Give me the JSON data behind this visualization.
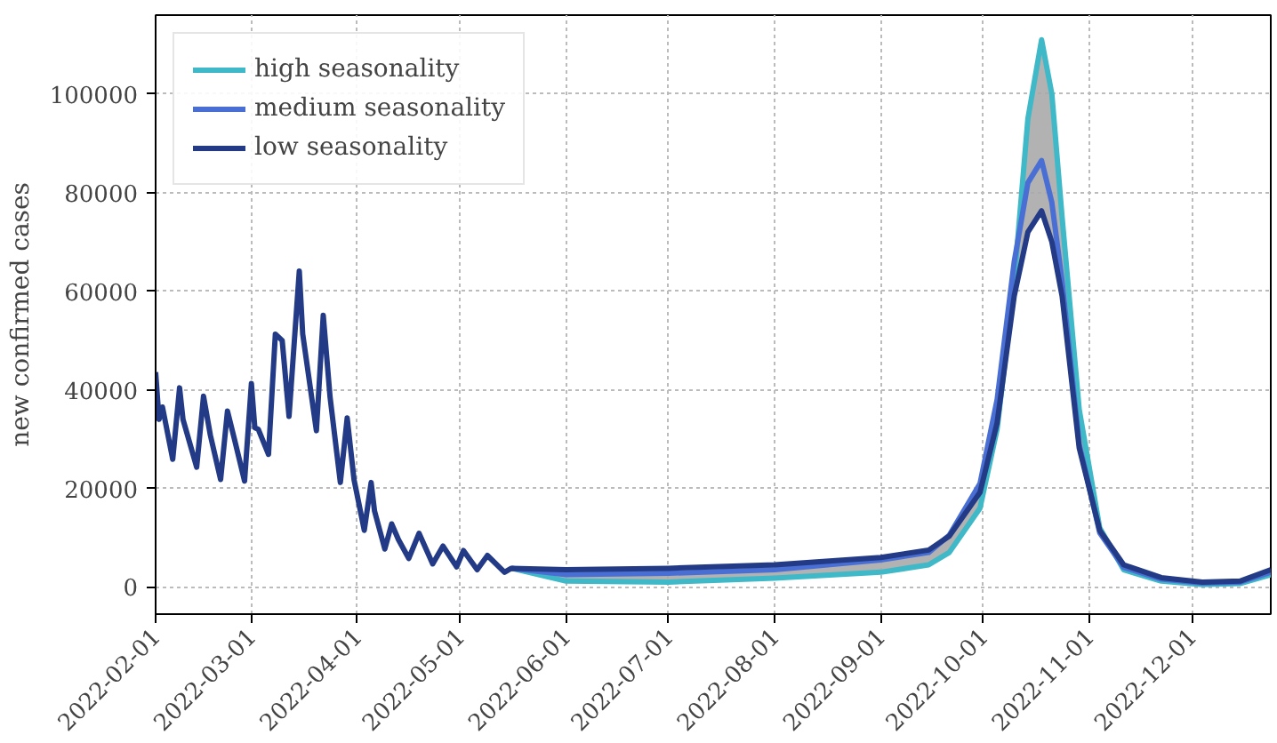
{
  "chart_data": {
    "type": "line",
    "ylabel": "new confirmed cases",
    "xlim": [
      "2022-02-01",
      "2022-12-24"
    ],
    "xticks": [
      "2022-02-01",
      "2022-03-01",
      "2022-04-01",
      "2022-05-01",
      "2022-06-01",
      "2022-07-01",
      "2022-08-01",
      "2022-09-01",
      "2022-10-01",
      "2022-11-01",
      "2022-12-01"
    ],
    "ylim": [
      -5500,
      116000
    ],
    "yticks": [
      0,
      20000,
      40000,
      60000,
      80000,
      100000
    ],
    "grid": true,
    "legend": "top left",
    "line_style": "solid",
    "series": [
      {
        "name": "high seasonality",
        "color": "#3fb8c8",
        "x": [
          "2022-05-16",
          "2022-06-01",
          "2022-07-01",
          "2022-08-01",
          "2022-09-01",
          "2022-09-15",
          "2022-09-21",
          "2022-09-30",
          "2022-10-05",
          "2022-10-10",
          "2022-10-14",
          "2022-10-18",
          "2022-10-21",
          "2022-10-24",
          "2022-10-29",
          "2022-11-04",
          "2022-11-11",
          "2022-11-22",
          "2022-12-04",
          "2022-12-15",
          "2022-12-24"
        ],
        "values": [
          3800,
          1200,
          1000,
          1800,
          3000,
          4500,
          7000,
          16000,
          32000,
          62000,
          95000,
          111000,
          100000,
          75000,
          36000,
          12000,
          3500,
          1200,
          500,
          700,
          2500
        ]
      },
      {
        "name": "medium seasonality",
        "color": "#4a6fd4",
        "x": [
          "2022-05-16",
          "2022-06-01",
          "2022-07-01",
          "2022-08-01",
          "2022-09-01",
          "2022-09-15",
          "2022-09-21",
          "2022-09-30",
          "2022-10-05",
          "2022-10-10",
          "2022-10-14",
          "2022-10-18",
          "2022-10-21",
          "2022-10-24",
          "2022-10-29",
          "2022-11-04",
          "2022-11-11",
          "2022-11-22",
          "2022-12-04",
          "2022-12-15",
          "2022-12-24"
        ],
        "values": [
          3800,
          2500,
          2800,
          3500,
          5500,
          7000,
          10500,
          21000,
          38000,
          66000,
          82000,
          86500,
          78000,
          62000,
          29000,
          11000,
          4000,
          1600,
          800,
          1000,
          3000
        ],
        "lower": [
          3800,
          1200,
          1000,
          1800,
          3000,
          4500,
          7000,
          16000,
          32000,
          59000,
          72000,
          76300,
          70000,
          59000,
          28200,
          11000,
          3500,
          1200,
          500,
          700,
          2500
        ],
        "upper": [
          3800,
          3500,
          3800,
          4500,
          6000,
          7500,
          10500,
          21000,
          38000,
          66000,
          95000,
          111000,
          100000,
          75000,
          36000,
          12000,
          4500,
          1900,
          1000,
          1200,
          3500
        ]
      },
      {
        "name": "low seasonality",
        "color": "#233b86",
        "x": [
          "2022-02-01",
          "2022-02-02",
          "2022-02-03",
          "2022-02-06",
          "2022-02-08",
          "2022-02-09",
          "2022-02-13",
          "2022-02-15",
          "2022-02-17",
          "2022-02-20",
          "2022-02-22",
          "2022-02-24",
          "2022-02-27",
          "2022-03-01",
          "2022-03-02",
          "2022-03-03",
          "2022-03-06",
          "2022-03-08",
          "2022-03-10",
          "2022-03-12",
          "2022-03-15",
          "2022-03-16",
          "2022-03-20",
          "2022-03-22",
          "2022-03-24",
          "2022-03-27",
          "2022-03-29",
          "2022-03-31",
          "2022-04-03",
          "2022-04-05",
          "2022-04-06",
          "2022-04-09",
          "2022-04-11",
          "2022-04-13",
          "2022-04-16",
          "2022-04-19",
          "2022-04-23",
          "2022-04-26",
          "2022-04-30",
          "2022-05-02",
          "2022-05-06",
          "2022-05-09",
          "2022-05-14",
          "2022-05-16",
          "2022-06-01",
          "2022-07-01",
          "2022-08-01",
          "2022-09-01",
          "2022-09-15",
          "2022-09-21",
          "2022-09-30",
          "2022-10-05",
          "2022-10-10",
          "2022-10-14",
          "2022-10-18",
          "2022-10-21",
          "2022-10-24",
          "2022-10-29",
          "2022-11-04",
          "2022-11-11",
          "2022-11-22",
          "2022-12-04",
          "2022-12-15",
          "2022-12-24"
        ],
        "values": [
          43600,
          34000,
          36500,
          25900,
          40400,
          34000,
          24300,
          38700,
          30800,
          21800,
          35700,
          30100,
          21500,
          41300,
          32300,
          32000,
          26900,
          51300,
          50000,
          34600,
          64100,
          51300,
          31700,
          55100,
          38500,
          21200,
          34300,
          21800,
          11500,
          21200,
          15400,
          7700,
          12800,
          9600,
          5800,
          10900,
          4700,
          8300,
          4100,
          7400,
          3500,
          6400,
          3000,
          3800,
          3500,
          3800,
          4500,
          6000,
          7500,
          10300,
          19200,
          33300,
          59000,
          72000,
          76300,
          70000,
          59000,
          28200,
          11500,
          4500,
          1900,
          1000,
          1200,
          3500
        ]
      }
    ]
  }
}
